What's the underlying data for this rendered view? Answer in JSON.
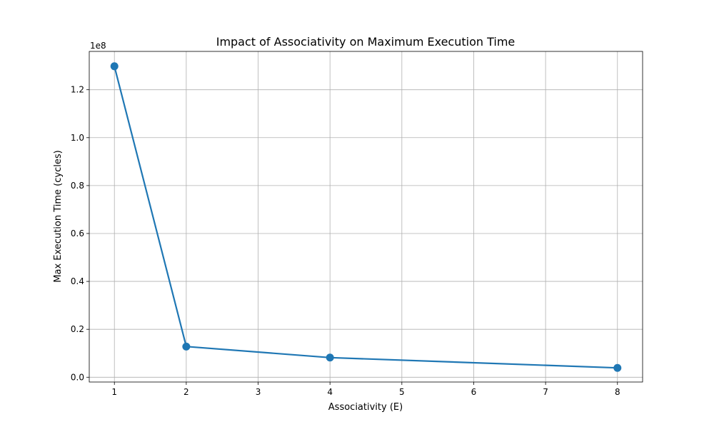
{
  "chart_data": {
    "type": "line",
    "title": "Impact of Associativity on Maximum Execution Time",
    "xlabel": "Associativity (E)",
    "ylabel": "Max Execution Time (cycles)",
    "y_offset_label": "1e8",
    "y_scale_factor": 100000000,
    "xlim": [
      0.65,
      8.35
    ],
    "ylim": [
      -2000000,
      136000000
    ],
    "x_ticks": [
      1,
      2,
      3,
      4,
      5,
      6,
      7,
      8
    ],
    "x_tick_labels": [
      "1",
      "2",
      "3",
      "4",
      "5",
      "6",
      "7",
      "8"
    ],
    "y_ticks": [
      0,
      20000000,
      40000000,
      60000000,
      80000000,
      100000000,
      120000000
    ],
    "y_tick_labels": [
      "0.0",
      "0.2",
      "0.4",
      "0.6",
      "0.8",
      "1.0",
      "1.2"
    ],
    "grid": true,
    "series": [
      {
        "x": [
          1,
          2,
          4,
          8
        ],
        "y": [
          129800000,
          12800000,
          8200000,
          3900000
        ],
        "color": "#1f77b4",
        "marker": "circle"
      }
    ]
  }
}
